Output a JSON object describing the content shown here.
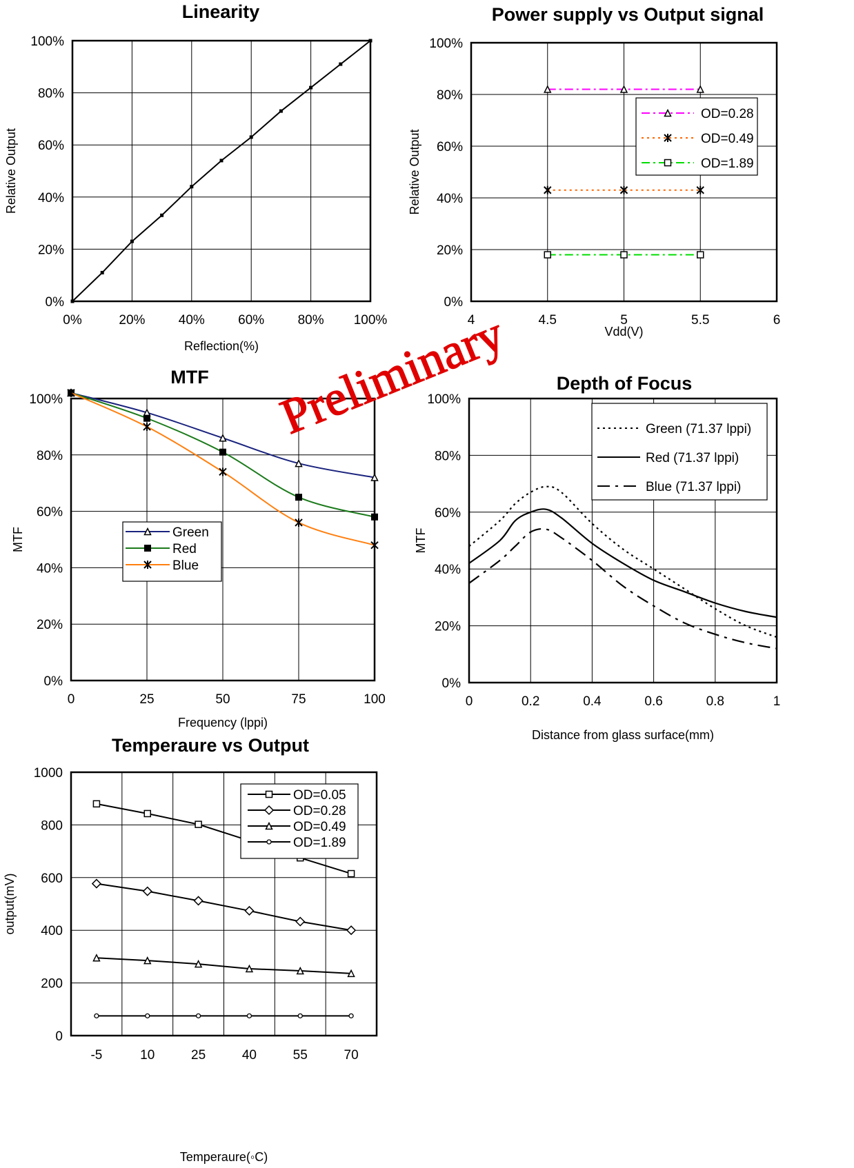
{
  "watermark": "Preliminary",
  "chart_data": [
    {
      "id": "linearity",
      "type": "line",
      "title": "Linearity",
      "xlabel": "Reflection(%)",
      "ylabel": "Relative Output",
      "xlim": [
        0,
        100
      ],
      "ylim": [
        0,
        100
      ],
      "xticks": [
        "0%",
        "20%",
        "40%",
        "60%",
        "80%",
        "100%"
      ],
      "yticks": [
        "0%",
        "20%",
        "40%",
        "60%",
        "80%",
        "100%"
      ],
      "grid": true,
      "series": [
        {
          "x": [
            0,
            10,
            20,
            30,
            40,
            50,
            60,
            70,
            80,
            90,
            100
          ],
          "y": [
            0,
            11,
            23,
            33,
            44,
            54,
            63,
            73,
            82,
            91,
            100
          ],
          "color": "#000000",
          "marker": "small-square"
        }
      ]
    },
    {
      "id": "power",
      "type": "line",
      "title": "Power supply vs Output signal",
      "xlabel": "Vdd(V)",
      "ylabel": "Relative Output",
      "xlim": [
        4,
        6
      ],
      "ylim": [
        0,
        100
      ],
      "xticks": [
        "4",
        "4.5",
        "5",
        "5.5",
        "6"
      ],
      "yticks": [
        "0%",
        "20%",
        "40%",
        "60%",
        "80%",
        "100%"
      ],
      "grid": true,
      "legend": "top-right",
      "series": [
        {
          "name": "OD=0.28",
          "x": [
            4.5,
            5,
            5.5
          ],
          "y": [
            82,
            82,
            82
          ],
          "color": "#ff00ff",
          "marker": "triangle",
          "dash": "dashdot"
        },
        {
          "name": "OD=0.49",
          "x": [
            4.5,
            5,
            5.5
          ],
          "y": [
            43,
            43,
            43
          ],
          "color": "#ff6600",
          "marker": "x-star",
          "dash": "dotted"
        },
        {
          "name": "OD=1.89",
          "x": [
            4.5,
            5,
            5.5
          ],
          "y": [
            18,
            18,
            18
          ],
          "color": "#00dd00",
          "marker": "square",
          "dash": "dashdot"
        }
      ]
    },
    {
      "id": "mtf",
      "type": "line",
      "title": "MTF",
      "xlabel": "Frequency (lppi)",
      "ylabel": "MTF",
      "xlim": [
        0,
        100
      ],
      "ylim": [
        0,
        100
      ],
      "xticks": [
        "0",
        "25",
        "50",
        "75",
        "100"
      ],
      "yticks": [
        "0%",
        "20%",
        "40%",
        "60%",
        "80%",
        "100%"
      ],
      "grid": true,
      "legend": "center-left",
      "series": [
        {
          "name": "Green",
          "x": [
            0,
            25,
            50,
            75,
            100
          ],
          "y": [
            102,
            95,
            86,
            77,
            72
          ],
          "color": "#1a237e",
          "marker": "triangle"
        },
        {
          "name": "Red",
          "x": [
            0,
            25,
            50,
            75,
            100
          ],
          "y": [
            102,
            93,
            81,
            65,
            58
          ],
          "color": "#1b7a1b",
          "marker": "filled-square"
        },
        {
          "name": "Blue",
          "x": [
            0,
            25,
            50,
            75,
            100
          ],
          "y": [
            102,
            90,
            74,
            56,
            48
          ],
          "color": "#ff7f0e",
          "marker": "x-star"
        }
      ]
    },
    {
      "id": "dof",
      "type": "line",
      "title": "Depth of Focus",
      "xlabel": "Distance from glass surface(mm)",
      "ylabel": "MTF",
      "xlim": [
        0,
        1
      ],
      "ylim": [
        0,
        100
      ],
      "xticks": [
        "0",
        "0.2",
        "0.4",
        "0.6",
        "0.8",
        "1"
      ],
      "yticks": [
        "0%",
        "20%",
        "40%",
        "60%",
        "80%",
        "100%"
      ],
      "grid": true,
      "legend": "top-right",
      "series": [
        {
          "name": "Green (71.37 lppi)",
          "x": [
            0,
            0.1,
            0.15,
            0.2,
            0.25,
            0.3,
            0.4,
            0.5,
            0.6,
            0.7,
            0.8,
            0.9,
            1.0
          ],
          "y": [
            48,
            57,
            63,
            67,
            69,
            67,
            56,
            47,
            40,
            33,
            26,
            20,
            16
          ],
          "color": "#000000",
          "dash": "dotted"
        },
        {
          "name": "Red (71.37 lppi)",
          "x": [
            0,
            0.1,
            0.15,
            0.2,
            0.25,
            0.3,
            0.4,
            0.5,
            0.6,
            0.7,
            0.8,
            0.9,
            1.0
          ],
          "y": [
            42,
            50,
            57,
            60,
            61,
            58,
            49,
            42,
            36,
            32,
            28,
            25,
            23
          ],
          "color": "#000000",
          "dash": "solid"
        },
        {
          "name": "Blue (71.37 lppi)",
          "x": [
            0,
            0.1,
            0.15,
            0.2,
            0.25,
            0.3,
            0.4,
            0.5,
            0.6,
            0.7,
            0.8,
            0.9,
            1.0
          ],
          "y": [
            35,
            43,
            48,
            53,
            54,
            51,
            43,
            34,
            27,
            21,
            17,
            14,
            12
          ],
          "color": "#000000",
          "dash": "dashlong"
        }
      ]
    },
    {
      "id": "temp",
      "type": "line",
      "title": "Temperaure vs Output",
      "xlabel": "Temperaure(◦C)",
      "ylabel": "output(mV)",
      "categories": [
        "-5",
        "10",
        "25",
        "40",
        "55",
        "70"
      ],
      "ylim": [
        0,
        1000
      ],
      "yticks": [
        "0",
        "200",
        "400",
        "600",
        "800",
        "1000"
      ],
      "grid": true,
      "legend": "top-right",
      "series": [
        {
          "name": "OD=0.05",
          "values": [
            880,
            843,
            802,
            740,
            675,
            615
          ],
          "color": "#000000",
          "marker": "square"
        },
        {
          "name": "OD=0.28",
          "values": [
            577,
            548,
            512,
            474,
            433,
            400
          ],
          "color": "#000000",
          "marker": "diamond"
        },
        {
          "name": "OD=0.49",
          "values": [
            295,
            285,
            272,
            254,
            246,
            236
          ],
          "color": "#000000",
          "marker": "triangle"
        },
        {
          "name": "OD=1.89",
          "values": [
            75,
            75,
            75,
            75,
            75,
            75
          ],
          "color": "#000000",
          "marker": "circle"
        }
      ]
    }
  ]
}
